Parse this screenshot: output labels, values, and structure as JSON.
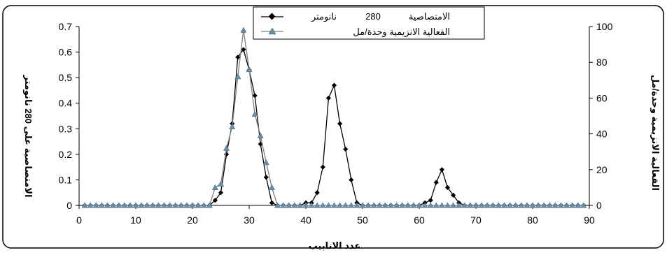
{
  "chart_data": {
    "type": "line",
    "x_axis": {
      "label": "عدد الانابيب",
      "min": 0,
      "max": 90,
      "ticks": [
        "0",
        "10",
        "20",
        "30",
        "40",
        "50",
        "60",
        "70",
        "80",
        "90"
      ]
    },
    "y_left": {
      "label": "الامتصاصية على 280 نانومتر",
      "min": 0,
      "max": 0.7,
      "ticks": [
        "0",
        "0.1",
        "0.2",
        "0.3",
        "0.4",
        "0.5",
        "0.6",
        "0.7"
      ]
    },
    "y_right": {
      "label": "الفعالية الانزيمية وحدة/مل",
      "min": 0,
      "max": 100,
      "ticks": [
        "0",
        "20",
        "40",
        "60",
        "80",
        "100"
      ]
    },
    "legend": {
      "placement": "top-center",
      "entries": [
        {
          "text_left": "280",
          "text_right": "الامتصاصية",
          "text_mid": "نانومتر"
        },
        {
          "text": "الفعالية الانزيمية وحدة/مل"
        }
      ]
    },
    "series": [
      {
        "axis": "left",
        "marker": "diamond",
        "color": "#000000",
        "x": [
          1,
          2,
          3,
          4,
          5,
          6,
          7,
          8,
          9,
          10,
          11,
          12,
          13,
          14,
          15,
          16,
          17,
          18,
          19,
          20,
          21,
          22,
          23,
          24,
          25,
          26,
          27,
          28,
          29,
          30,
          31,
          32,
          33,
          34,
          35,
          36,
          37,
          38,
          39,
          40,
          41,
          42,
          43,
          44,
          45,
          46,
          47,
          48,
          49,
          50,
          51,
          52,
          53,
          54,
          55,
          56,
          57,
          58,
          59,
          60,
          61,
          62,
          63,
          64,
          65,
          66,
          67,
          68,
          69,
          70,
          71,
          72,
          73,
          74,
          75,
          76,
          77,
          78,
          79,
          80,
          81,
          82,
          83,
          84,
          85,
          86,
          87,
          88,
          89
        ],
        "y": [
          0,
          0,
          0,
          0,
          0,
          0,
          0,
          0,
          0,
          0,
          0,
          0,
          0,
          0,
          0,
          0,
          0,
          0,
          0,
          0,
          0,
          0,
          0,
          0.02,
          0.05,
          0.2,
          0.32,
          0.58,
          0.61,
          0.53,
          0.43,
          0.24,
          0.11,
          0.01,
          0,
          0,
          0,
          0,
          0,
          0.01,
          0.01,
          0.05,
          0.15,
          0.42,
          0.47,
          0.32,
          0.22,
          0.1,
          0.01,
          0,
          0,
          0,
          0,
          0,
          0,
          0,
          0,
          0,
          0,
          0,
          0.01,
          0.02,
          0.09,
          0.14,
          0.07,
          0.04,
          0.01,
          0,
          0,
          0,
          0,
          0,
          0,
          0,
          0,
          0,
          0,
          0,
          0,
          0,
          0,
          0,
          0,
          0,
          0,
          0,
          0,
          0,
          0
        ]
      },
      {
        "axis": "right",
        "marker": "triangle",
        "color": "#808080",
        "marker_color": "#6a8fa8",
        "x": [
          1,
          2,
          3,
          4,
          5,
          6,
          7,
          8,
          9,
          10,
          11,
          12,
          13,
          14,
          15,
          16,
          17,
          18,
          19,
          20,
          21,
          22,
          23,
          24,
          25,
          26,
          27,
          28,
          29,
          30,
          31,
          32,
          33,
          34,
          35,
          36,
          37,
          38,
          39,
          40,
          41,
          42,
          43,
          44,
          45,
          46,
          47,
          48,
          49,
          50,
          51,
          52,
          53,
          54,
          55,
          56,
          57,
          58,
          59,
          60,
          61,
          62,
          63,
          64,
          65,
          66,
          67,
          68,
          69,
          70,
          71,
          72,
          73,
          74,
          75,
          76,
          77,
          78,
          79,
          80,
          81,
          82,
          83,
          84,
          85,
          86,
          87,
          88,
          89
        ],
        "y": [
          0,
          0,
          0,
          0,
          0,
          0,
          0,
          0,
          0,
          0,
          0,
          0,
          0,
          0,
          0,
          0,
          0,
          0,
          0,
          0,
          0,
          0,
          0,
          10,
          12,
          32,
          44,
          72,
          98,
          76,
          51,
          39,
          24,
          10,
          0,
          0,
          0,
          0,
          0,
          0,
          0,
          0,
          0,
          0,
          0,
          0,
          0,
          0,
          0,
          0,
          0,
          0,
          0,
          0,
          0,
          0,
          0,
          0,
          0,
          0,
          0,
          0,
          0,
          0,
          0,
          0,
          0,
          0,
          0,
          0,
          0,
          0,
          0,
          0,
          0,
          0,
          0,
          0,
          0,
          0,
          0,
          0,
          0,
          0,
          0,
          0,
          0,
          0,
          0
        ]
      }
    ]
  }
}
